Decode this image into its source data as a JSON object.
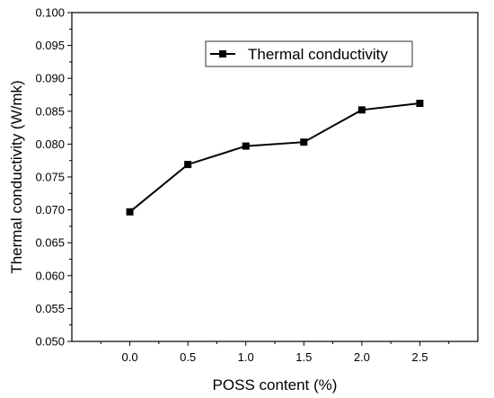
{
  "chart_data": {
    "type": "line",
    "title": "",
    "xlabel": "POSS content (%)",
    "ylabel": "Thermal conductivity (W/mk)",
    "xlim": [
      -0.5,
      3.0
    ],
    "ylim": [
      0.05,
      0.1
    ],
    "x_ticks": [
      "0.0",
      "0.5",
      "1.0",
      "1.5",
      "2.0",
      "2.5"
    ],
    "y_ticks": [
      "0.050",
      "0.055",
      "0.060",
      "0.065",
      "0.070",
      "0.075",
      "0.080",
      "0.085",
      "0.090",
      "0.095",
      "0.100"
    ],
    "grid": false,
    "legend_position": "top-right",
    "series": [
      {
        "name": "Thermal conductivity",
        "marker": "square",
        "color": "#000000",
        "x": [
          0.0,
          0.5,
          1.0,
          1.5,
          2.0,
          2.5
        ],
        "y": [
          0.0697,
          0.0769,
          0.0797,
          0.0803,
          0.0852,
          0.0862
        ]
      }
    ]
  }
}
